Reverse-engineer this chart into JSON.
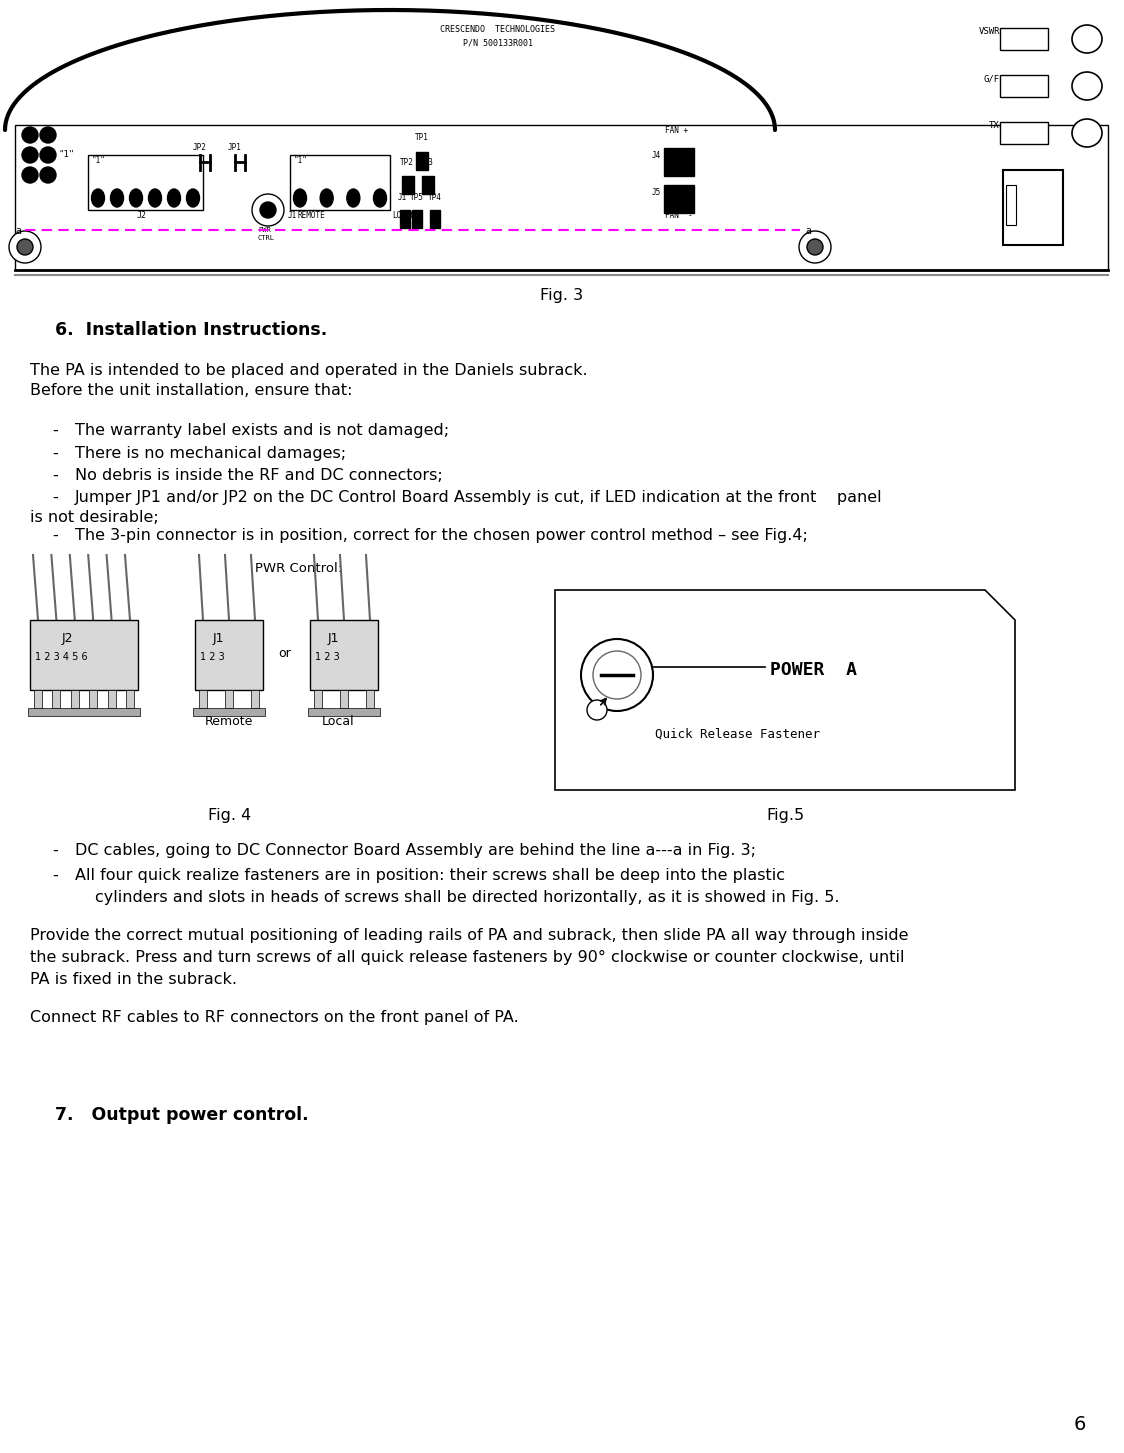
{
  "page_num": "6",
  "fig3_caption": "Fig. 3",
  "section_num": "6.",
  "section_title": "Installation Instructions",
  "intro_line1": "The PA is intended to be placed and operated in the Daniels subrack.",
  "intro_line2": "Before the unit installation, ensure that:",
  "bullet1": "The warranty label exists and is not damaged;",
  "bullet2": "There is no mechanical damages;",
  "bullet3": "No debris is inside the RF and DC connectors;",
  "bullet4a": "Jumper JP1 and/or JP2 on the DC Control Board Assembly is cut, if LED indication at the front    panel",
  "bullet4b": "is not desirable;",
  "bullet5": "The 3-pin connector is in position, correct for the chosen power control method – see Fig.4;",
  "pwr_control_label": "PWR Control:",
  "j2_label": "J2",
  "j1_label": "J1",
  "j1_nums": "1 2 3",
  "j2_nums": "1 2 3 4 5 6",
  "remote_label": "Remote",
  "local_label": "Local",
  "or_label": "or",
  "fig4_caption": "Fig. 4",
  "fig5_caption": "Fig.5",
  "power_label": "POWER  A",
  "qrf_label": "Quick Release Fastener",
  "b2_line1": "DC cables, going to DC Connector Board Assembly are behind the line a---a in Fig. 3;",
  "b2_line2a": "All four quick realize fasteners are in position: their screws shall be deep into the plastic",
  "b2_line2b": "        cylinders and slots in heads of screws shall be directed horizontally, as it is showed in Fig. 5.",
  "para1_line1": "Provide the correct mutual positioning of leading rails of PA and subrack, then slide PA all way through inside",
  "para1_line2": "the subrack. Press and turn screws of all quick release fasteners by 90° clockwise or counter clockwise, until",
  "para1_line3": "PA is fixed in the subrack.",
  "para2": "Connect RF cables to RF connectors on the front panel of PA.",
  "section7_num": "7.",
  "section7_title": "Output power control",
  "bg_color": "#ffffff",
  "body_fs": 11.5,
  "caption_fs": 11.5,
  "section_fs": 12.5
}
